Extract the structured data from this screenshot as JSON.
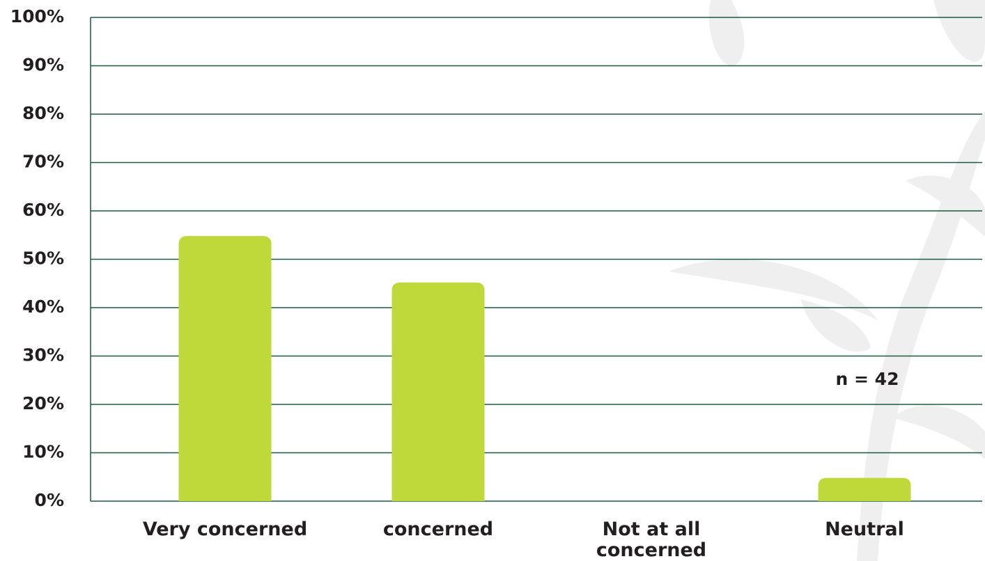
{
  "chart_data": {
    "type": "bar",
    "categories": [
      "Very concerned",
      "concerned",
      "Not at all concerned",
      "Neutral"
    ],
    "values": [
      54.8,
      45.2,
      0,
      4.8
    ],
    "color": "#bfd83a",
    "ylim": [
      0,
      100
    ],
    "yticks": [
      {
        "value": 0,
        "label": "0%"
      },
      {
        "value": 10,
        "label": "10%"
      },
      {
        "value": 20,
        "label": "20%"
      },
      {
        "value": 30,
        "label": "30%"
      },
      {
        "value": 40,
        "label": "40%"
      },
      {
        "value": 50,
        "label": "50%"
      },
      {
        "value": 60,
        "label": "60%"
      },
      {
        "value": 70,
        "label": "70%"
      },
      {
        "value": 80,
        "label": "80%"
      },
      {
        "value": 90,
        "label": "90%"
      },
      {
        "value": 100,
        "label": "100%"
      }
    ],
    "grid": true,
    "annotation": "n = 42"
  }
}
